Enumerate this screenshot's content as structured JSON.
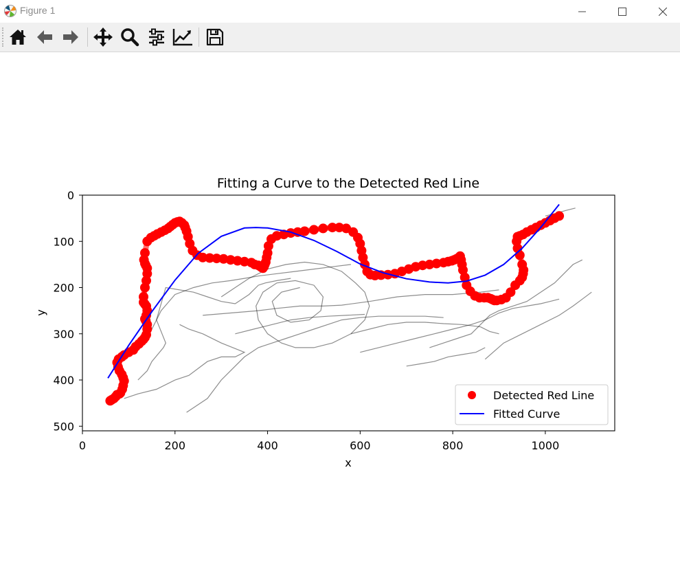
{
  "window": {
    "title": "Figure 1",
    "controls": [
      "minimize",
      "maximize",
      "close"
    ]
  },
  "toolbar": {
    "buttons": [
      {
        "name": "home",
        "icon": "home-icon"
      },
      {
        "name": "back",
        "icon": "arrow-left-icon"
      },
      {
        "name": "forward",
        "icon": "arrow-right-icon"
      },
      {
        "name": "pan",
        "icon": "move-icon"
      },
      {
        "name": "zoom",
        "icon": "magnifier-icon"
      },
      {
        "name": "configure-subplots",
        "icon": "sliders-icon"
      },
      {
        "name": "edit-axis",
        "icon": "line-chart-icon"
      },
      {
        "name": "save",
        "icon": "floppy-disk-icon"
      }
    ]
  },
  "chart_data": {
    "type": "scatter",
    "title": "Fitting a Curve to the Detected Red Line",
    "xlabel": "x",
    "ylabel": "y",
    "xlim": [
      0,
      1150
    ],
    "ylim": [
      510,
      0
    ],
    "y_inverted": true,
    "xticks": [
      0,
      200,
      400,
      600,
      800,
      1000
    ],
    "yticks": [
      0,
      100,
      200,
      300,
      400,
      500
    ],
    "grid": false,
    "legend_position": "lower right",
    "legend": [
      {
        "label": "Detected Red Line",
        "marker": "circle",
        "color": "#ff0000"
      },
      {
        "label": "Fitted Curve",
        "marker": "line",
        "color": "#0000ff"
      }
    ],
    "colors": {
      "detected": "#ff0000",
      "fitted": "#0000ff",
      "background_lines": "#000000"
    },
    "detected_red_line": {
      "x": [
        60,
        63,
        68,
        72,
        75,
        80,
        82,
        86,
        88,
        90,
        88,
        85,
        80,
        77,
        75,
        78,
        85,
        90,
        100,
        110,
        115,
        122,
        128,
        132,
        135,
        138,
        140,
        140,
        137,
        135,
        138,
        140,
        138,
        135,
        132,
        132,
        135,
        138,
        140,
        140,
        137,
        135,
        133,
        135,
        140,
        148,
        155,
        162,
        170,
        178,
        185,
        190,
        195,
        200,
        205,
        210,
        215,
        220,
        222,
        225,
        228,
        232,
        238,
        248,
        260,
        275,
        290,
        305,
        320,
        335,
        350,
        365,
        372,
        380,
        385,
        388,
        390,
        392,
        394,
        396,
        398,
        400,
        402,
        408,
        420,
        435,
        450,
        465,
        480,
        500,
        520,
        540,
        555,
        570,
        585,
        595,
        600,
        603,
        606,
        610,
        615,
        622,
        632,
        645,
        660,
        675,
        690,
        705,
        720,
        735,
        750,
        765,
        780,
        790,
        798,
        803,
        808,
        813,
        816,
        818,
        820,
        822,
        826,
        830,
        838,
        848,
        858,
        868,
        876,
        882,
        886,
        890,
        895,
        905,
        915,
        925,
        935,
        945,
        950,
        952,
        953,
        950,
        945,
        940,
        938,
        940,
        945,
        952,
        960,
        970,
        980,
        990,
        1000,
        1010,
        1020,
        1030
      ],
      "y": [
        445,
        443,
        440,
        436,
        432,
        430,
        428,
        420,
        412,
        402,
        395,
        388,
        380,
        372,
        362,
        355,
        350,
        346,
        340,
        335,
        328,
        322,
        316,
        312,
        308,
        302,
        290,
        280,
        272,
        268,
        260,
        250,
        240,
        236,
        232,
        220,
        200,
        185,
        170,
        158,
        152,
        148,
        140,
        125,
        100,
        92,
        88,
        84,
        80,
        76,
        72,
        68,
        64,
        60,
        58,
        57,
        60,
        65,
        70,
        78,
        90,
        105,
        120,
        130,
        135,
        136,
        137,
        138,
        140,
        142,
        144,
        146,
        150,
        152,
        155,
        157,
        158,
        155,
        150,
        145,
        135,
        125,
        110,
        95,
        88,
        85,
        82,
        80,
        78,
        75,
        72,
        70,
        70,
        72,
        80,
        92,
        105,
        120,
        135,
        150,
        165,
        172,
        174,
        173,
        172,
        170,
        165,
        160,
        155,
        152,
        150,
        148,
        146,
        144,
        142,
        140,
        138,
        135,
        132,
        140,
        150,
        162,
        178,
        195,
        208,
        218,
        222,
        222,
        222,
        224,
        226,
        228,
        228,
        226,
        222,
        210,
        195,
        185,
        178,
        170,
        162,
        150,
        130,
        115,
        100,
        90,
        88,
        85,
        80,
        75,
        70,
        65,
        60,
        55,
        50,
        45
      ]
    },
    "fitted_curve": {
      "x": [
        55,
        100,
        150,
        200,
        250,
        300,
        350,
        375,
        400,
        450,
        500,
        550,
        600,
        650,
        700,
        750,
        790,
        830,
        870,
        910,
        950,
        990,
        1030
      ],
      "y": [
        396,
        325,
        252,
        184,
        126,
        89,
        71,
        70,
        71,
        80,
        98,
        122,
        149,
        168,
        181,
        188,
        190,
        186,
        173,
        150,
        115,
        70,
        20
      ]
    },
    "background_scribble_lines": [
      [
        [
          120,
          400
        ],
        [
          140,
          380
        ],
        [
          150,
          360
        ],
        [
          175,
          330
        ],
        [
          180,
          320
        ],
        [
          160,
          270
        ],
        [
          180,
          200
        ],
        [
          240,
          210
        ],
        [
          270,
          220
        ],
        [
          300,
          230
        ],
        [
          330,
          235
        ],
        [
          360,
          215
        ],
        [
          380,
          195
        ],
        [
          395,
          190
        ],
        [
          420,
          185
        ],
        [
          450,
          180
        ]
      ],
      [
        [
          90,
          440
        ],
        [
          120,
          430
        ],
        [
          160,
          420
        ],
        [
          200,
          400
        ],
        [
          230,
          390
        ],
        [
          270,
          360
        ],
        [
          300,
          350
        ],
        [
          330,
          350
        ],
        [
          350,
          340
        ],
        [
          300,
          320
        ],
        [
          260,
          300
        ],
        [
          230,
          290
        ],
        [
          210,
          280
        ]
      ],
      [
        [
          145,
          300
        ],
        [
          170,
          250
        ],
        [
          200,
          215
        ],
        [
          240,
          200
        ],
        [
          280,
          190
        ],
        [
          320,
          185
        ],
        [
          350,
          180
        ],
        [
          380,
          175
        ],
        [
          420,
          170
        ],
        [
          460,
          165
        ],
        [
          500,
          160
        ],
        [
          540,
          155
        ],
        [
          580,
          150
        ]
      ],
      [
        [
          260,
          260
        ],
        [
          320,
          255
        ],
        [
          380,
          250
        ],
        [
          420,
          245
        ],
        [
          470,
          240
        ],
        [
          520,
          240
        ],
        [
          560,
          238
        ],
        [
          620,
          230
        ],
        [
          680,
          220
        ],
        [
          740,
          215
        ],
        [
          800,
          215
        ],
        [
          860,
          210
        ],
        [
          900,
          205
        ]
      ],
      [
        [
          225,
          470
        ],
        [
          270,
          440
        ],
        [
          300,
          400
        ],
        [
          330,
          370
        ],
        [
          350,
          350
        ],
        [
          380,
          330
        ],
        [
          410,
          320
        ],
        [
          440,
          310
        ],
        [
          470,
          300
        ],
        [
          500,
          290
        ],
        [
          530,
          280
        ],
        [
          560,
          270
        ],
        [
          600,
          265
        ],
        [
          640,
          262
        ],
        [
          700,
          262
        ],
        [
          740,
          262
        ],
        [
          780,
          265
        ]
      ],
      [
        [
          300,
          220
        ],
        [
          330,
          200
        ],
        [
          360,
          180
        ],
        [
          400,
          160
        ],
        [
          440,
          150
        ],
        [
          480,
          145
        ],
        [
          520,
          150
        ],
        [
          560,
          165
        ],
        [
          590,
          190
        ],
        [
          610,
          210
        ],
        [
          620,
          240
        ],
        [
          610,
          270
        ],
        [
          580,
          300
        ],
        [
          540,
          320
        ],
        [
          500,
          330
        ],
        [
          460,
          330
        ],
        [
          430,
          320
        ],
        [
          400,
          300
        ],
        [
          380,
          270
        ],
        [
          375,
          240
        ],
        [
          390,
          210
        ],
        [
          420,
          190
        ],
        [
          460,
          185
        ],
        [
          500,
          195
        ],
        [
          520,
          220
        ],
        [
          515,
          250
        ],
        [
          490,
          270
        ],
        [
          450,
          275
        ],
        [
          420,
          260
        ],
        [
          410,
          230
        ],
        [
          430,
          210
        ],
        [
          470,
          200
        ]
      ],
      [
        [
          580,
          300
        ],
        [
          620,
          290
        ],
        [
          660,
          280
        ],
        [
          700,
          275
        ],
        [
          740,
          275
        ],
        [
          780,
          278
        ],
        [
          820,
          280
        ],
        [
          860,
          285
        ],
        [
          880,
          295
        ],
        [
          900,
          300
        ]
      ],
      [
        [
          600,
          340
        ],
        [
          640,
          330
        ],
        [
          680,
          320
        ],
        [
          720,
          310
        ],
        [
          760,
          300
        ],
        [
          800,
          290
        ],
        [
          840,
          280
        ],
        [
          870,
          270
        ],
        [
          900,
          255
        ],
        [
          930,
          245
        ],
        [
          960,
          240
        ],
        [
          990,
          235
        ],
        [
          1010,
          230
        ],
        [
          1030,
          225
        ]
      ],
      [
        [
          870,
          355
        ],
        [
          910,
          320
        ],
        [
          950,
          300
        ],
        [
          990,
          280
        ],
        [
          1030,
          260
        ],
        [
          1060,
          240
        ],
        [
          1080,
          225
        ],
        [
          1100,
          210
        ]
      ],
      [
        [
          750,
          330
        ],
        [
          780,
          320
        ],
        [
          810,
          310
        ],
        [
          840,
          300
        ],
        [
          860,
          280
        ],
        [
          880,
          260
        ],
        [
          900,
          250
        ],
        [
          930,
          240
        ],
        [
          960,
          230
        ],
        [
          990,
          210
        ],
        [
          1020,
          190
        ],
        [
          1040,
          170
        ],
        [
          1060,
          150
        ],
        [
          1080,
          140
        ]
      ],
      [
        [
          330,
          300
        ],
        [
          370,
          290
        ],
        [
          410,
          280
        ],
        [
          450,
          270
        ],
        [
          490,
          265
        ],
        [
          530,
          262
        ],
        [
          570,
          260
        ],
        [
          610,
          258
        ]
      ],
      [
        [
          700,
          370
        ],
        [
          730,
          365
        ],
        [
          760,
          360
        ],
        [
          790,
          350
        ],
        [
          820,
          345
        ],
        [
          850,
          340
        ],
        [
          870,
          330
        ]
      ],
      [
        [
          1000,
          45
        ],
        [
          1020,
          40
        ],
        [
          1045,
          33
        ],
        [
          1065,
          28
        ]
      ]
    ]
  }
}
